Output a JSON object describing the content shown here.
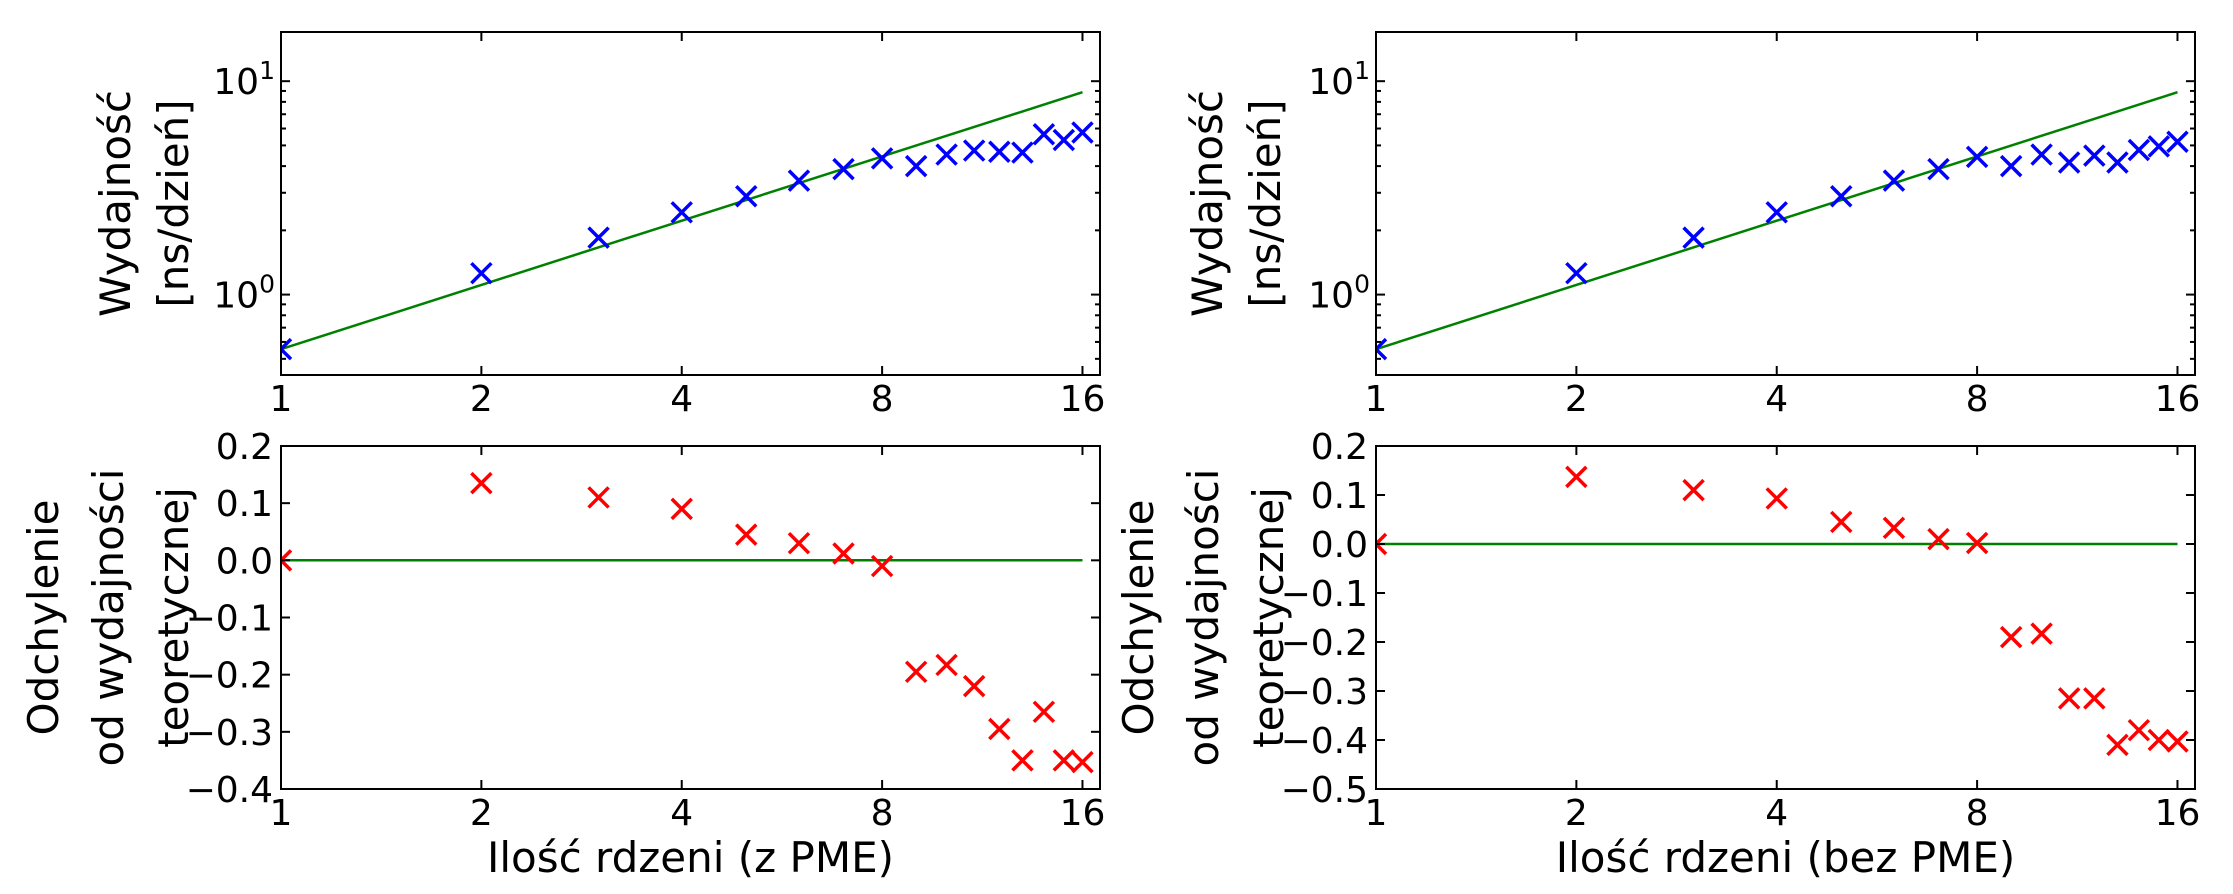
{
  "chart_data": [
    {
      "type": "line",
      "panel": "top-left",
      "xscale": "log2",
      "yscale": "log10",
      "xlim": [
        1,
        17
      ],
      "ylim": [
        0.42,
        17
      ],
      "xticks": [
        1,
        2,
        4,
        8,
        16
      ],
      "xtick_labels": [
        "1",
        "2",
        "4",
        "8",
        "16"
      ],
      "yticks": [
        1,
        10
      ],
      "ytick_labels": [
        {
          "base": "10",
          "exp": "0"
        },
        {
          "base": "10",
          "exp": "1"
        }
      ],
      "ylabel_lines": [
        "Wydajność",
        "[ns/dzień]"
      ],
      "xlabel": "",
      "grid": false,
      "series": [
        {
          "kind": "line",
          "color": "#008000",
          "x": [
            1,
            16
          ],
          "y": [
            0.555,
            8.88
          ]
        },
        {
          "kind": "scatter",
          "marker": "x",
          "color": "#0000ff",
          "x": [
            1,
            2,
            3,
            4,
            5,
            6,
            7,
            8,
            9,
            10,
            11,
            12,
            13,
            14,
            15,
            16
          ],
          "y": [
            0.555,
            1.26,
            1.85,
            2.43,
            2.89,
            3.42,
            3.87,
            4.35,
            4.0,
            4.53,
            4.73,
            4.67,
            4.63,
            5.64,
            5.3,
            5.75
          ]
        }
      ]
    },
    {
      "type": "line",
      "panel": "top-right",
      "xscale": "log2",
      "yscale": "log10",
      "xlim": [
        1,
        17
      ],
      "ylim": [
        0.42,
        17
      ],
      "xticks": [
        1,
        2,
        4,
        8,
        16
      ],
      "xtick_labels": [
        "1",
        "2",
        "4",
        "8",
        "16"
      ],
      "yticks": [
        1,
        10
      ],
      "ytick_labels": [
        {
          "base": "10",
          "exp": "0"
        },
        {
          "base": "10",
          "exp": "1"
        }
      ],
      "ylabel_lines": [
        "Wydajność",
        "[ns/dzień]"
      ],
      "xlabel": "",
      "grid": false,
      "series": [
        {
          "kind": "line",
          "color": "#008000",
          "x": [
            1,
            16
          ],
          "y": [
            0.555,
            8.88
          ]
        },
        {
          "kind": "scatter",
          "marker": "x",
          "color": "#0000ff",
          "x": [
            1,
            2,
            3,
            4,
            5,
            6,
            7,
            8,
            9,
            10,
            11,
            12,
            13,
            14,
            15,
            16
          ],
          "y": [
            0.555,
            1.26,
            1.85,
            2.43,
            2.89,
            3.42,
            3.87,
            4.42,
            4.0,
            4.53,
            4.16,
            4.48,
            4.16,
            4.76,
            4.95,
            5.2
          ]
        }
      ]
    },
    {
      "type": "scatter",
      "panel": "bottom-left",
      "xscale": "log2",
      "yscale": "linear",
      "xlim": [
        1,
        17
      ],
      "ylim": [
        -0.4,
        0.2
      ],
      "xticks": [
        1,
        2,
        4,
        8,
        16
      ],
      "xtick_labels": [
        "1",
        "2",
        "4",
        "8",
        "16"
      ],
      "yticks": [
        -0.4,
        -0.3,
        -0.2,
        -0.1,
        0.0,
        0.1,
        0.2
      ],
      "ytick_labels": [
        "−0.4",
        "−0.3",
        "−0.2",
        "−0.1",
        "0.0",
        "0.1",
        "0.2"
      ],
      "ylabel_lines": [
        "Odchylenie",
        "od wydajności",
        "teoretycznej"
      ],
      "xlabel": "Ilość rdzeni (z PME)",
      "grid": false,
      "series": [
        {
          "kind": "line",
          "color": "#008000",
          "x": [
            1,
            16
          ],
          "y": [
            0.0,
            0.0
          ]
        },
        {
          "kind": "scatter",
          "marker": "x",
          "color": "#ff0000",
          "x": [
            1,
            2,
            3,
            4,
            5,
            6,
            7,
            8,
            9,
            10,
            11,
            12,
            13,
            14,
            15,
            16
          ],
          "y": [
            0.0,
            0.135,
            0.11,
            0.09,
            0.045,
            0.03,
            0.012,
            -0.01,
            -0.195,
            -0.183,
            -0.22,
            -0.295,
            -0.35,
            -0.265,
            -0.35,
            -0.353
          ]
        }
      ]
    },
    {
      "type": "scatter",
      "panel": "bottom-right",
      "xscale": "log2",
      "yscale": "linear",
      "xlim": [
        1,
        17
      ],
      "ylim": [
        -0.5,
        0.2
      ],
      "xticks": [
        1,
        2,
        4,
        8,
        16
      ],
      "xtick_labels": [
        "1",
        "2",
        "4",
        "8",
        "16"
      ],
      "yticks": [
        -0.5,
        -0.4,
        -0.3,
        -0.2,
        -0.1,
        0.0,
        0.1,
        0.2
      ],
      "ytick_labels": [
        "−0.5",
        "−0.4",
        "−0.3",
        "−0.2",
        "−0.1",
        "0.0",
        "0.1",
        "0.2"
      ],
      "ylabel_lines": [
        "Odchylenie",
        "od wydajności",
        "teoretycznej"
      ],
      "xlabel": "Ilość rdzeni (bez PME)",
      "grid": false,
      "series": [
        {
          "kind": "line",
          "color": "#008000",
          "x": [
            1,
            16
          ],
          "y": [
            0.0,
            0.0
          ]
        },
        {
          "kind": "scatter",
          "marker": "x",
          "color": "#ff0000",
          "x": [
            1,
            2,
            3,
            4,
            5,
            6,
            7,
            8,
            9,
            10,
            11,
            12,
            13,
            14,
            15,
            16
          ],
          "y": [
            0.0,
            0.137,
            0.11,
            0.093,
            0.045,
            0.033,
            0.01,
            0.002,
            -0.19,
            -0.183,
            -0.315,
            -0.315,
            -0.41,
            -0.38,
            -0.4,
            -0.403
          ]
        }
      ]
    }
  ]
}
